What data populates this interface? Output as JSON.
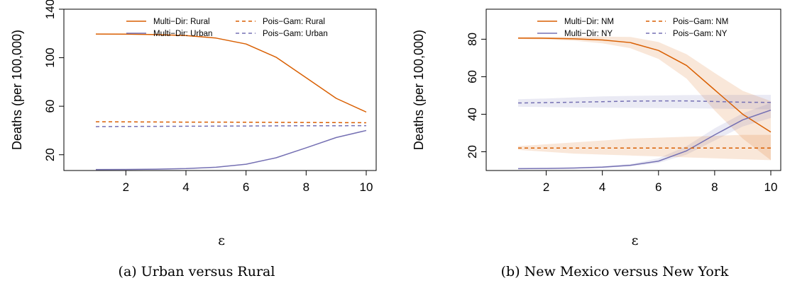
{
  "chart_data": [
    {
      "type": "line",
      "caption": "(a) Urban versus Rural",
      "xlabel": "ε",
      "ylabel": "Deaths (per 100,000)",
      "xlim": [
        1,
        10
      ],
      "ylim": [
        7,
        140
      ],
      "x_ticks": [
        2,
        4,
        6,
        8,
        10
      ],
      "y_ticks": [
        20,
        60,
        100,
        140
      ],
      "grid": false,
      "legend_position": "top",
      "colors": {
        "rural": "#d95f02",
        "urban": "#7570b3"
      },
      "x": [
        1,
        2,
        3,
        4,
        5,
        6,
        7,
        8,
        9,
        10
      ],
      "series": [
        {
          "name": "Multi−Dir: Rural",
          "color": "#d95f02",
          "dash": "solid",
          "values": [
            119.5,
            119.4,
            119.1,
            118.3,
            116.2,
            111.3,
            100.4,
            83.5,
            66.5,
            55.2
          ]
        },
        {
          "name": "Multi−Dir: Urban",
          "color": "#7570b3",
          "dash": "solid",
          "values": [
            7.8,
            7.9,
            8.1,
            8.6,
            9.7,
            12.2,
            17.5,
            25.7,
            34.2,
            40.0
          ]
        },
        {
          "name": "Pois−Gam: Rural",
          "color": "#d95f02",
          "dash": "dashed",
          "values": [
            47.2,
            47.1,
            47.0,
            46.9,
            46.9,
            46.8,
            46.7,
            46.6,
            46.5,
            46.4
          ]
        },
        {
          "name": "Pois−Gam: Urban",
          "color": "#7570b3",
          "dash": "dashed",
          "values": [
            43.2,
            43.3,
            43.4,
            43.5,
            43.6,
            43.7,
            43.8,
            43.9,
            43.9,
            44.0
          ]
        }
      ]
    },
    {
      "type": "line",
      "caption": "(b) New Mexico versus New York",
      "xlabel": "ε",
      "ylabel": "Deaths (per 100,000)",
      "xlim": [
        1,
        10
      ],
      "ylim": [
        10,
        96
      ],
      "x_ticks": [
        2,
        4,
        6,
        8,
        10
      ],
      "y_ticks": [
        20,
        40,
        60,
        80
      ],
      "grid": false,
      "legend_position": "top",
      "colors": {
        "nm": "#d95f02",
        "ny": "#7570b3"
      },
      "x": [
        1,
        2,
        3,
        4,
        5,
        6,
        7,
        8,
        9,
        10
      ],
      "series": [
        {
          "name": "Multi−Dir: NM",
          "color": "#d95f02",
          "dash": "solid",
          "values": [
            80.6,
            80.5,
            80.2,
            79.6,
            78.2,
            74.0,
            66.0,
            53.0,
            40.0,
            30.5
          ],
          "band_lower": [
            80.1,
            79.9,
            79.2,
            77.8,
            75.2,
            69.5,
            59.0,
            42.0,
            27.0,
            15.5
          ],
          "band_upper": [
            81.1,
            81.2,
            81.3,
            81.4,
            81.2,
            78.5,
            72.0,
            62.0,
            52.5,
            47.0
          ]
        },
        {
          "name": "Multi−Dir: NY",
          "color": "#7570b3",
          "dash": "solid",
          "values": [
            11.0,
            11.1,
            11.3,
            11.8,
            12.8,
            15.0,
            20.5,
            29.0,
            37.0,
            42.2
          ],
          "band_lower": [
            10.8,
            10.9,
            11.0,
            11.4,
            12.2,
            14.0,
            18.5,
            26.0,
            33.5,
            38.0
          ],
          "band_upper": [
            11.2,
            11.4,
            11.7,
            12.3,
            13.5,
            16.5,
            23.0,
            32.5,
            40.5,
            46.0
          ]
        },
        {
          "name": "Pois−Gam: NM",
          "color": "#d95f02",
          "dash": "dashed",
          "values": [
            22.0,
            22.0,
            22.0,
            22.0,
            22.0,
            22.0,
            22.0,
            22.0,
            22.0,
            22.0
          ],
          "band_lower": [
            21.0,
            20.0,
            19.0,
            18.5,
            18.0,
            17.5,
            17.0,
            16.5,
            16.0,
            15.5
          ],
          "band_upper": [
            23.0,
            24.0,
            25.0,
            26.0,
            27.0,
            27.5,
            28.0,
            28.5,
            29.0,
            29.0
          ]
        },
        {
          "name": "Pois−Gam: NY",
          "color": "#7570b3",
          "dash": "dashed",
          "values": [
            46.0,
            46.2,
            46.4,
            46.7,
            47.0,
            47.1,
            47.1,
            46.8,
            46.4,
            46.3
          ],
          "band_lower": [
            44.0,
            43.8,
            43.6,
            43.5,
            43.4,
            43.3,
            43.2,
            43.0,
            42.8,
            42.6
          ],
          "band_upper": [
            48.0,
            48.4,
            49.0,
            49.5,
            49.8,
            50.0,
            50.2,
            50.3,
            50.3,
            50.3
          ]
        }
      ]
    }
  ]
}
